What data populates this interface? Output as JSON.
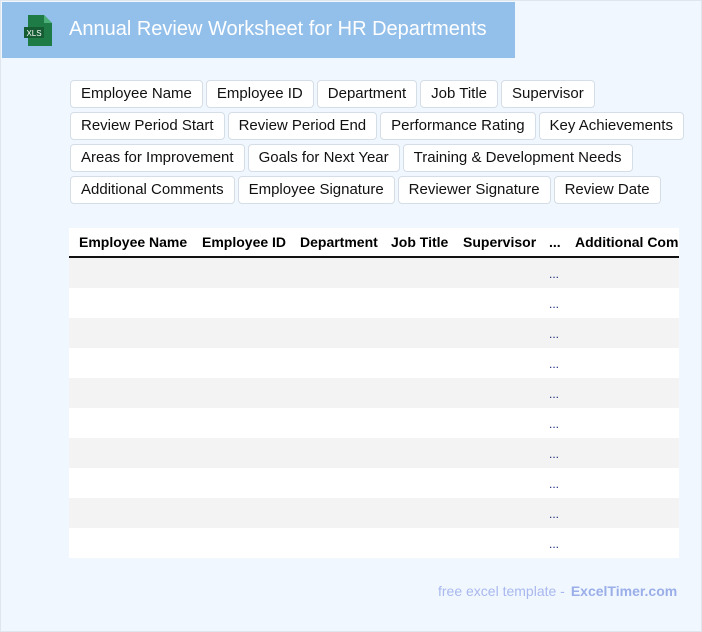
{
  "header": {
    "title": "Annual Review Worksheet for HR Departments",
    "icon": "xls-file-icon",
    "icon_label": "XLS"
  },
  "tags": [
    [
      "Employee Name",
      "Employee ID",
      "Department",
      "Job Title",
      "Supervisor"
    ],
    [
      "Review Period Start",
      "Review Period End",
      "Performance Rating",
      "Key Achievements"
    ],
    [
      "Areas for Improvement",
      "Goals for Next Year",
      "Training & Development Needs"
    ],
    [
      "Additional Comments",
      "Employee Signature",
      "Reviewer Signature",
      "Review Date"
    ]
  ],
  "table": {
    "columns": [
      "Employee Name",
      "Employee ID",
      "Department",
      "Job Title",
      "Supervisor",
      "...",
      "Additional Com"
    ],
    "rows": [
      "...",
      "...",
      "...",
      "...",
      "...",
      "...",
      "...",
      "...",
      "...",
      "..."
    ]
  },
  "footer": {
    "text": "free excel template -",
    "brand": "ExcelTimer.com"
  },
  "colors": {
    "header": "#93c0eb",
    "background": "#f0f7ff",
    "xls_green": "#1e7b45"
  }
}
